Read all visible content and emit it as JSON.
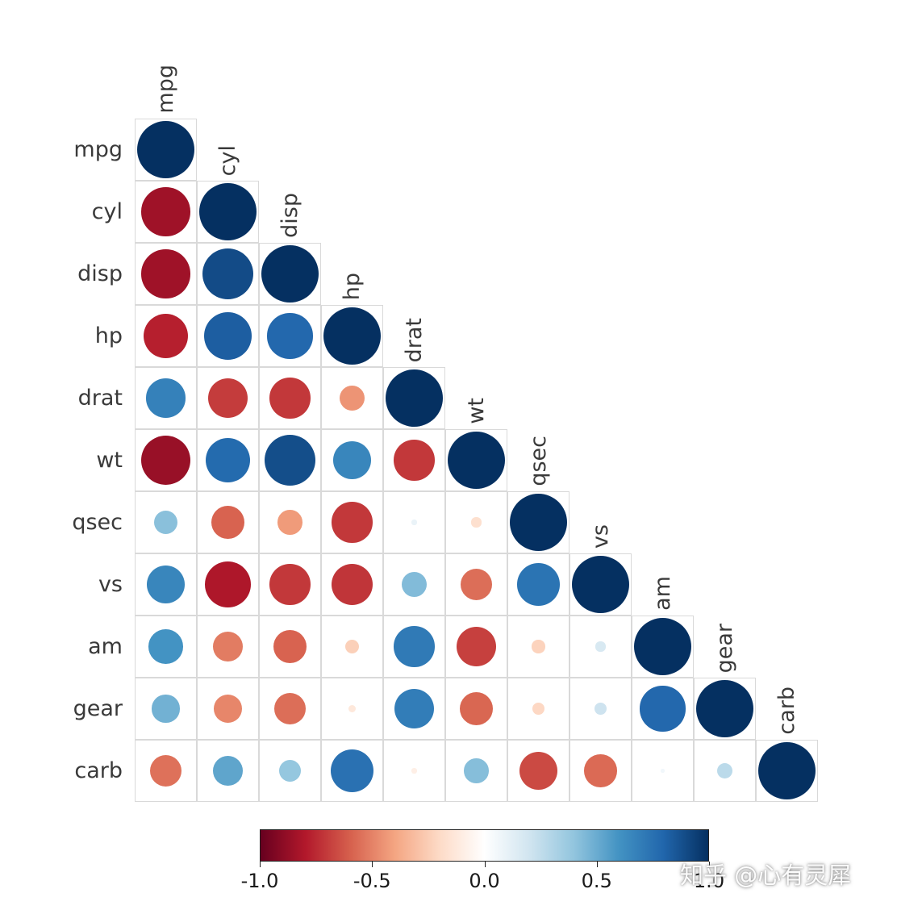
{
  "chart_data": {
    "type": "heatmap",
    "subtype": "correlation-matrix-circles",
    "title": "",
    "variables": [
      "mpg",
      "cyl",
      "disp",
      "hp",
      "drat",
      "wt",
      "qsec",
      "vs",
      "am",
      "gear",
      "carb"
    ],
    "matrix_lower": [
      [
        1.0
      ],
      [
        -0.85,
        1.0
      ],
      [
        -0.85,
        0.9,
        1.0
      ],
      [
        -0.78,
        0.83,
        0.79,
        1.0
      ],
      [
        0.68,
        -0.7,
        -0.71,
        -0.45,
        1.0
      ],
      [
        -0.87,
        0.78,
        0.89,
        0.66,
        -0.71,
        1.0
      ],
      [
        0.42,
        -0.59,
        -0.43,
        -0.71,
        0.09,
        -0.17,
        1.0
      ],
      [
        0.66,
        -0.81,
        -0.71,
        -0.72,
        0.44,
        -0.56,
        0.74,
        1.0
      ],
      [
        0.6,
        -0.52,
        -0.59,
        -0.24,
        0.71,
        -0.69,
        -0.23,
        0.17,
        1.0
      ],
      [
        0.48,
        -0.49,
        -0.56,
        -0.13,
        0.7,
        -0.58,
        -0.21,
        0.21,
        0.79,
        1.0
      ],
      [
        -0.55,
        0.53,
        0.39,
        0.75,
        -0.09,
        0.43,
        -0.66,
        -0.57,
        0.06,
        0.27,
        1.0
      ]
    ],
    "value_range": [
      -1,
      1
    ],
    "encoding": {
      "circle_size": "proportional to |correlation|",
      "circle_color": "red negative, blue positive"
    },
    "legend": {
      "orientation": "horizontal",
      "position": "bottom",
      "tick_labels": [
        "-1.0",
        "-0.5",
        "0.0",
        "0.5",
        "1.0"
      ],
      "tick_values": [
        -1,
        -0.5,
        0,
        0.5,
        1
      ]
    },
    "palette_stops": [
      {
        "v": -1.0,
        "c": "#67001F"
      },
      {
        "v": -0.8,
        "c": "#B2182B"
      },
      {
        "v": -0.6,
        "c": "#D6604D"
      },
      {
        "v": -0.4,
        "c": "#F4A582"
      },
      {
        "v": -0.2,
        "c": "#FDDBC7"
      },
      {
        "v": 0.0,
        "c": "#FFFFFF"
      },
      {
        "v": 0.2,
        "c": "#D1E5F0"
      },
      {
        "v": 0.4,
        "c": "#92C5DE"
      },
      {
        "v": 0.6,
        "c": "#4393C3"
      },
      {
        "v": 0.8,
        "c": "#2166AC"
      },
      {
        "v": 1.0,
        "c": "#053061"
      }
    ],
    "grid_color": "#d9d9d9",
    "label_color": "#3a3a3a",
    "grid_on": true
  },
  "watermark": {
    "text": "知乎 @心有灵犀"
  }
}
